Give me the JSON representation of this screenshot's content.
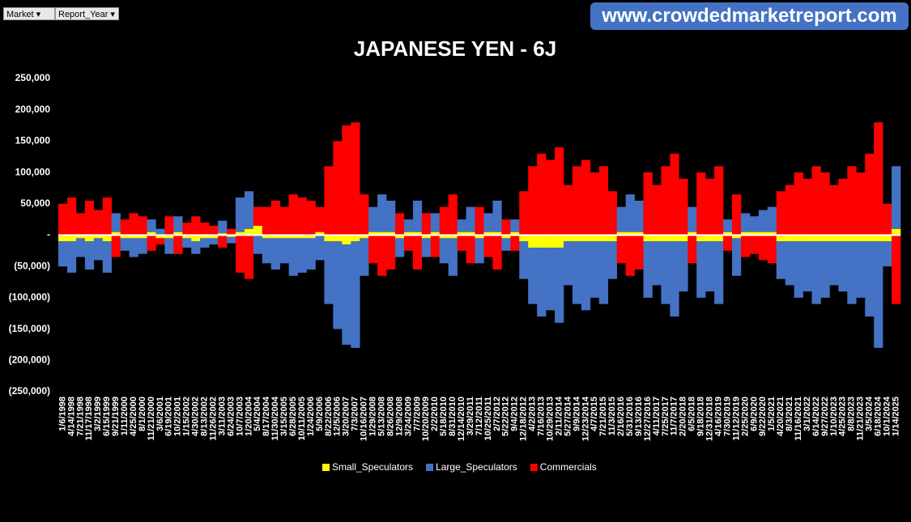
{
  "filters": [
    "Market",
    "Report_Year"
  ],
  "banner": "www.crowdedmarketreport.com",
  "chart_data": {
    "type": "bar",
    "stacked": true,
    "title": "JAPANESE YEN - 6J",
    "categories": [
      "1/6/1998",
      "4/14/1998",
      "7/21/1998",
      "11/17/1998",
      "3/2/1999",
      "6/15/1999",
      "9/21/1999",
      "1/11/2000",
      "4/25/2000",
      "8/1/2000",
      "11/21/2000",
      "3/6/2001",
      "6/19/2001",
      "10/2/2001",
      "1/15/2002",
      "4/30/2002",
      "8/13/2002",
      "11/26/2002",
      "3/11/2003",
      "6/24/2003",
      "10/7/2003",
      "1/20/2004",
      "5/4/2004",
      "8/17/2004",
      "11/30/2004",
      "3/15/2005",
      "6/28/2005",
      "10/11/2005",
      "1/24/2006",
      "5/9/2006",
      "8/22/2006",
      "12/5/2006",
      "3/20/2007",
      "7/3/2007",
      "10/16/2007",
      "1/29/2008",
      "5/13/2008",
      "8/26/2008",
      "12/9/2008",
      "3/24/2009",
      "7/7/2009",
      "10/20/2009",
      "2/2/2010",
      "5/18/2010",
      "8/31/2010",
      "12/14/2010",
      "3/29/2011",
      "7/12/2011",
      "10/25/2011",
      "2/7/2012",
      "5/22/2012",
      "9/4/2012",
      "12/18/2012",
      "4/2/2013",
      "7/16/2013",
      "10/29/2013",
      "2/11/2014",
      "5/27/2014",
      "9/9/2014",
      "12/23/2014",
      "4/7/2015",
      "7/21/2015",
      "11/3/2015",
      "2/16/2016",
      "5/31/2016",
      "9/13/2016",
      "12/27/2016",
      "4/11/2017",
      "7/25/2017",
      "11/7/2017",
      "2/20/2018",
      "6/5/2018",
      "9/18/2018",
      "12/31/2018",
      "4/16/2019",
      "7/30/2019",
      "11/12/2019",
      "2/25/2020",
      "6/9/2020",
      "9/22/2020",
      "1/5/2021",
      "4/20/2021",
      "8/3/2021",
      "11/16/2021",
      "3/1/2022",
      "6/14/2022",
      "9/27/2022",
      "1/10/2023",
      "4/25/2023",
      "8/8/2023",
      "11/21/2023",
      "3/5/2024",
      "6/18/2024",
      "10/1/2024",
      "1/14/2025"
    ],
    "series": [
      {
        "name": "Small_Speculators",
        "color": "#ffff00",
        "values": [
          -10000,
          -10000,
          -5000,
          -10000,
          -5000,
          -10000,
          5000,
          -5000,
          -5000,
          -5000,
          5000,
          -5000,
          -5000,
          5000,
          -5000,
          -10000,
          -5000,
          -5000,
          3000,
          -3000,
          5000,
          10000,
          15000,
          -5000,
          -5000,
          -5000,
          -5000,
          -5000,
          -5000,
          5000,
          -10000,
          -10000,
          -15000,
          -10000,
          -5000,
          5000,
          5000,
          5000,
          -5000,
          5000,
          5000,
          -5000,
          5000,
          -5000,
          -5000,
          5000,
          5000,
          -5000,
          5000,
          5000,
          -5000,
          5000,
          -10000,
          -20000,
          -20000,
          -20000,
          -20000,
          -10000,
          -10000,
          -10000,
          -10000,
          -10000,
          -10000,
          5000,
          5000,
          5000,
          -10000,
          -10000,
          -10000,
          -10000,
          -10000,
          5000,
          -10000,
          -10000,
          -10000,
          5000,
          -5000,
          5000,
          5000,
          5000,
          5000,
          -10000,
          -10000,
          -10000,
          -10000,
          -10000,
          -10000,
          -10000,
          -10000,
          -10000,
          -10000,
          -10000,
          -10000,
          -10000,
          10000
        ]
      },
      {
        "name": "Large_Speculators",
        "color": "#4472c4",
        "values": [
          -40000,
          -50000,
          -30000,
          -45000,
          -35000,
          -50000,
          30000,
          -20000,
          -30000,
          -25000,
          20000,
          10000,
          -25000,
          25000,
          -15000,
          -20000,
          -15000,
          -10000,
          20000,
          -10000,
          55000,
          60000,
          -30000,
          -40000,
          -50000,
          -40000,
          -60000,
          -55000,
          -50000,
          -40000,
          -100000,
          -140000,
          -160000,
          -170000,
          -60000,
          40000,
          60000,
          50000,
          -30000,
          20000,
          50000,
          -30000,
          30000,
          -40000,
          -60000,
          20000,
          40000,
          -40000,
          30000,
          50000,
          -20000,
          20000,
          -60000,
          -90000,
          -110000,
          -100000,
          -120000,
          -70000,
          -100000,
          -110000,
          -90000,
          -100000,
          -60000,
          40000,
          60000,
          50000,
          -90000,
          -70000,
          -100000,
          -120000,
          -80000,
          40000,
          -90000,
          -80000,
          -100000,
          20000,
          -60000,
          30000,
          25000,
          35000,
          40000,
          -60000,
          -70000,
          -90000,
          -80000,
          -100000,
          -90000,
          -70000,
          -80000,
          -100000,
          -90000,
          -120000,
          -170000,
          -40000,
          100000
        ]
      },
      {
        "name": "Commercials",
        "color": "#ff0000",
        "values": [
          50000,
          60000,
          35000,
          55000,
          40000,
          60000,
          -35000,
          25000,
          35000,
          30000,
          -25000,
          -10000,
          30000,
          -30000,
          20000,
          30000,
          20000,
          15000,
          -20000,
          10000,
          -60000,
          -70000,
          30000,
          45000,
          55000,
          45000,
          65000,
          60000,
          55000,
          40000,
          110000,
          150000,
          175000,
          180000,
          65000,
          -45000,
          -65000,
          -55000,
          35000,
          -25000,
          -55000,
          35000,
          -35000,
          45000,
          65000,
          -25000,
          -45000,
          45000,
          -35000,
          -55000,
          25000,
          -25000,
          70000,
          110000,
          130000,
          120000,
          140000,
          80000,
          110000,
          120000,
          100000,
          110000,
          70000,
          -45000,
          -65000,
          -55000,
          100000,
          80000,
          110000,
          130000,
          90000,
          -45000,
          100000,
          90000,
          110000,
          -25000,
          65000,
          -35000,
          -30000,
          -40000,
          -45000,
          70000,
          80000,
          100000,
          90000,
          110000,
          100000,
          80000,
          90000,
          110000,
          100000,
          130000,
          180000,
          50000,
          -110000
        ]
      }
    ],
    "ylim": [
      -250000,
      250000
    ],
    "yticks": [
      {
        "value": 250000,
        "label": "250,000"
      },
      {
        "value": 200000,
        "label": "200,000"
      },
      {
        "value": 150000,
        "label": "150,000"
      },
      {
        "value": 100000,
        "label": "100,000"
      },
      {
        "value": 50000,
        "label": "50,000"
      },
      {
        "value": 0,
        "label": "-"
      },
      {
        "value": -50000,
        "label": "(50,000)"
      },
      {
        "value": -100000,
        "label": "(100,000)"
      },
      {
        "value": -150000,
        "label": "(150,000)"
      },
      {
        "value": -200000,
        "label": "(200,000)"
      },
      {
        "value": -250000,
        "label": "(250,000)"
      }
    ],
    "legend": "bottom"
  }
}
